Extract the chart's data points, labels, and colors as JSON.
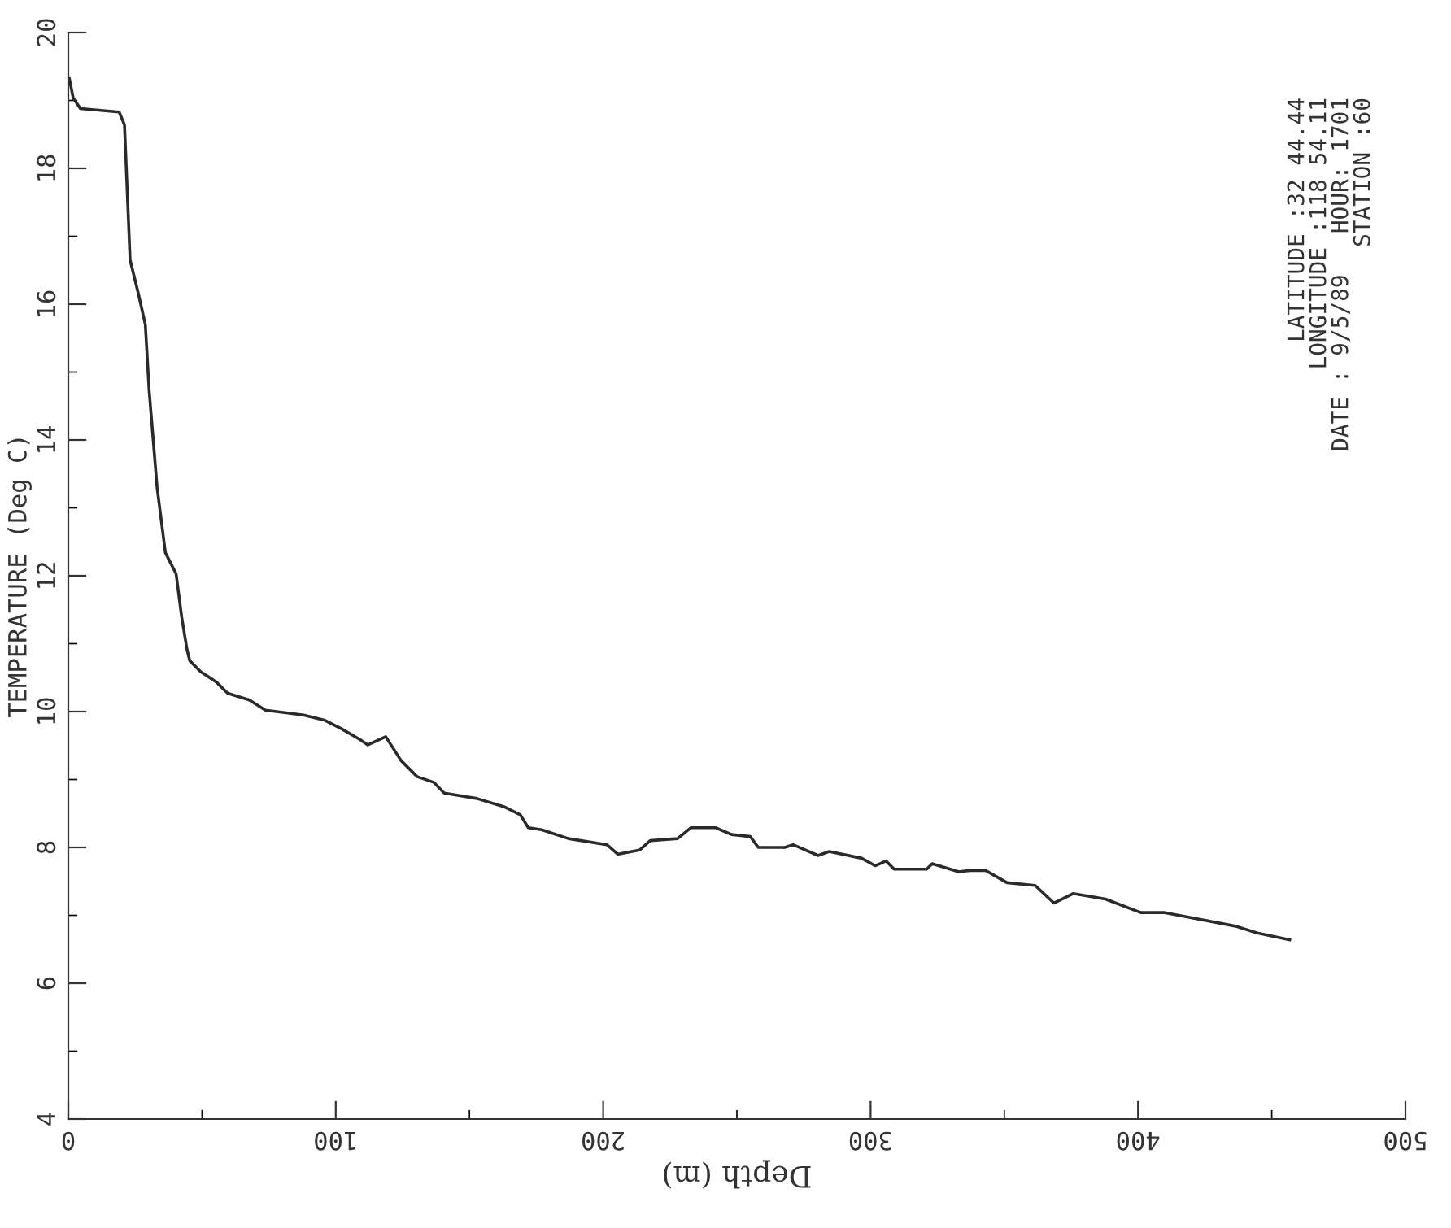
{
  "chart_data": {
    "type": "line",
    "xlabel": "Depth (m)",
    "ylabel": "TEMPERATURE (Deg C)",
    "xlim": [
      0,
      500
    ],
    "xticks": [
      0,
      100,
      200,
      300,
      400,
      500
    ],
    "ylim": [
      4,
      20
    ],
    "yticks": [
      4,
      6,
      8,
      10,
      12,
      14,
      16,
      18,
      20
    ],
    "grid": false,
    "legend": false,
    "marker": "none",
    "line_style": "solid",
    "annotations": [
      "LATITUDE :32 44.44",
      "LONGITUDE :118 54.11",
      "DATE : 9/5/89   HOUR: 1701",
      "STATION :60"
    ],
    "series": [
      {
        "color": "#2a2a2a",
        "x": [
          0.4,
          1.8,
          4.5,
          19,
          21,
          23.1,
          26.1,
          28.8,
          30.2,
          33.2,
          36.3,
          40.3,
          42.4,
          44.4,
          45.4,
          49.4,
          55.5,
          59.6,
          67.7,
          73.7,
          88,
          96,
          102,
          109,
          112,
          118.7,
          124.4,
          130.5,
          136.6,
          140.6,
          152.8,
          162.9,
          169,
          172,
          177,
          187,
          201.4,
          205.5,
          213.6,
          217.6,
          227.8,
          232.8,
          242,
          248,
          255,
          258,
          268,
          271,
          280.4,
          284.5,
          296.7,
          301.7,
          305.8,
          308.8,
          321,
          323,
          333,
          337,
          343,
          351,
          361.5,
          368.6,
          375.7,
          387.8,
          401,
          410,
          418,
          436.5,
          444.6,
          456.7
        ],
        "values": [
          19.32,
          19.04,
          18.88,
          18.83,
          18.64,
          16.65,
          16.17,
          15.7,
          14.74,
          13.3,
          12.34,
          12.03,
          11.39,
          10.91,
          10.75,
          10.59,
          10.43,
          10.27,
          10.17,
          10.02,
          9.95,
          9.87,
          9.75,
          9.59,
          9.51,
          9.63,
          9.28,
          9.04,
          8.96,
          8.8,
          8.72,
          8.6,
          8.48,
          8.29,
          8.26,
          8.13,
          8.04,
          7.9,
          7.96,
          8.1,
          8.13,
          8.29,
          8.29,
          8.19,
          8.16,
          8.0,
          8.0,
          8.04,
          7.88,
          7.94,
          7.84,
          7.73,
          7.8,
          7.68,
          7.68,
          7.76,
          7.64,
          7.66,
          7.66,
          7.48,
          7.44,
          7.18,
          7.32,
          7.24,
          7.04,
          7.04,
          6.98,
          6.84,
          6.74,
          6.64
        ]
      }
    ]
  }
}
